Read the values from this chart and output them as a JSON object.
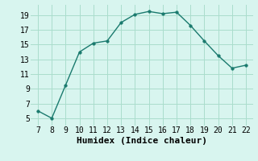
{
  "x": [
    7,
    8,
    9,
    10,
    11,
    12,
    13,
    14,
    15,
    16,
    17,
    18,
    19,
    20,
    21,
    22
  ],
  "y": [
    6.0,
    5.0,
    9.5,
    14.0,
    15.2,
    15.5,
    18.0,
    19.1,
    19.5,
    19.2,
    19.4,
    17.6,
    15.5,
    13.5,
    11.8,
    12.2
  ],
  "line_color": "#1a7a6e",
  "marker": "o",
  "marker_size": 2.5,
  "bg_color": "#d8f5ef",
  "grid_color": "#aaddcc",
  "xlabel": "Humidex (Indice chaleur)",
  "xlim": [
    6.5,
    22.5
  ],
  "ylim": [
    4,
    20.4
  ],
  "xticks": [
    7,
    8,
    9,
    10,
    11,
    12,
    13,
    14,
    15,
    16,
    17,
    18,
    19,
    20,
    21,
    22
  ],
  "yticks": [
    5,
    7,
    9,
    11,
    13,
    15,
    17,
    19
  ],
  "xlabel_fontsize": 8,
  "tick_fontsize": 7,
  "linewidth": 1.0
}
